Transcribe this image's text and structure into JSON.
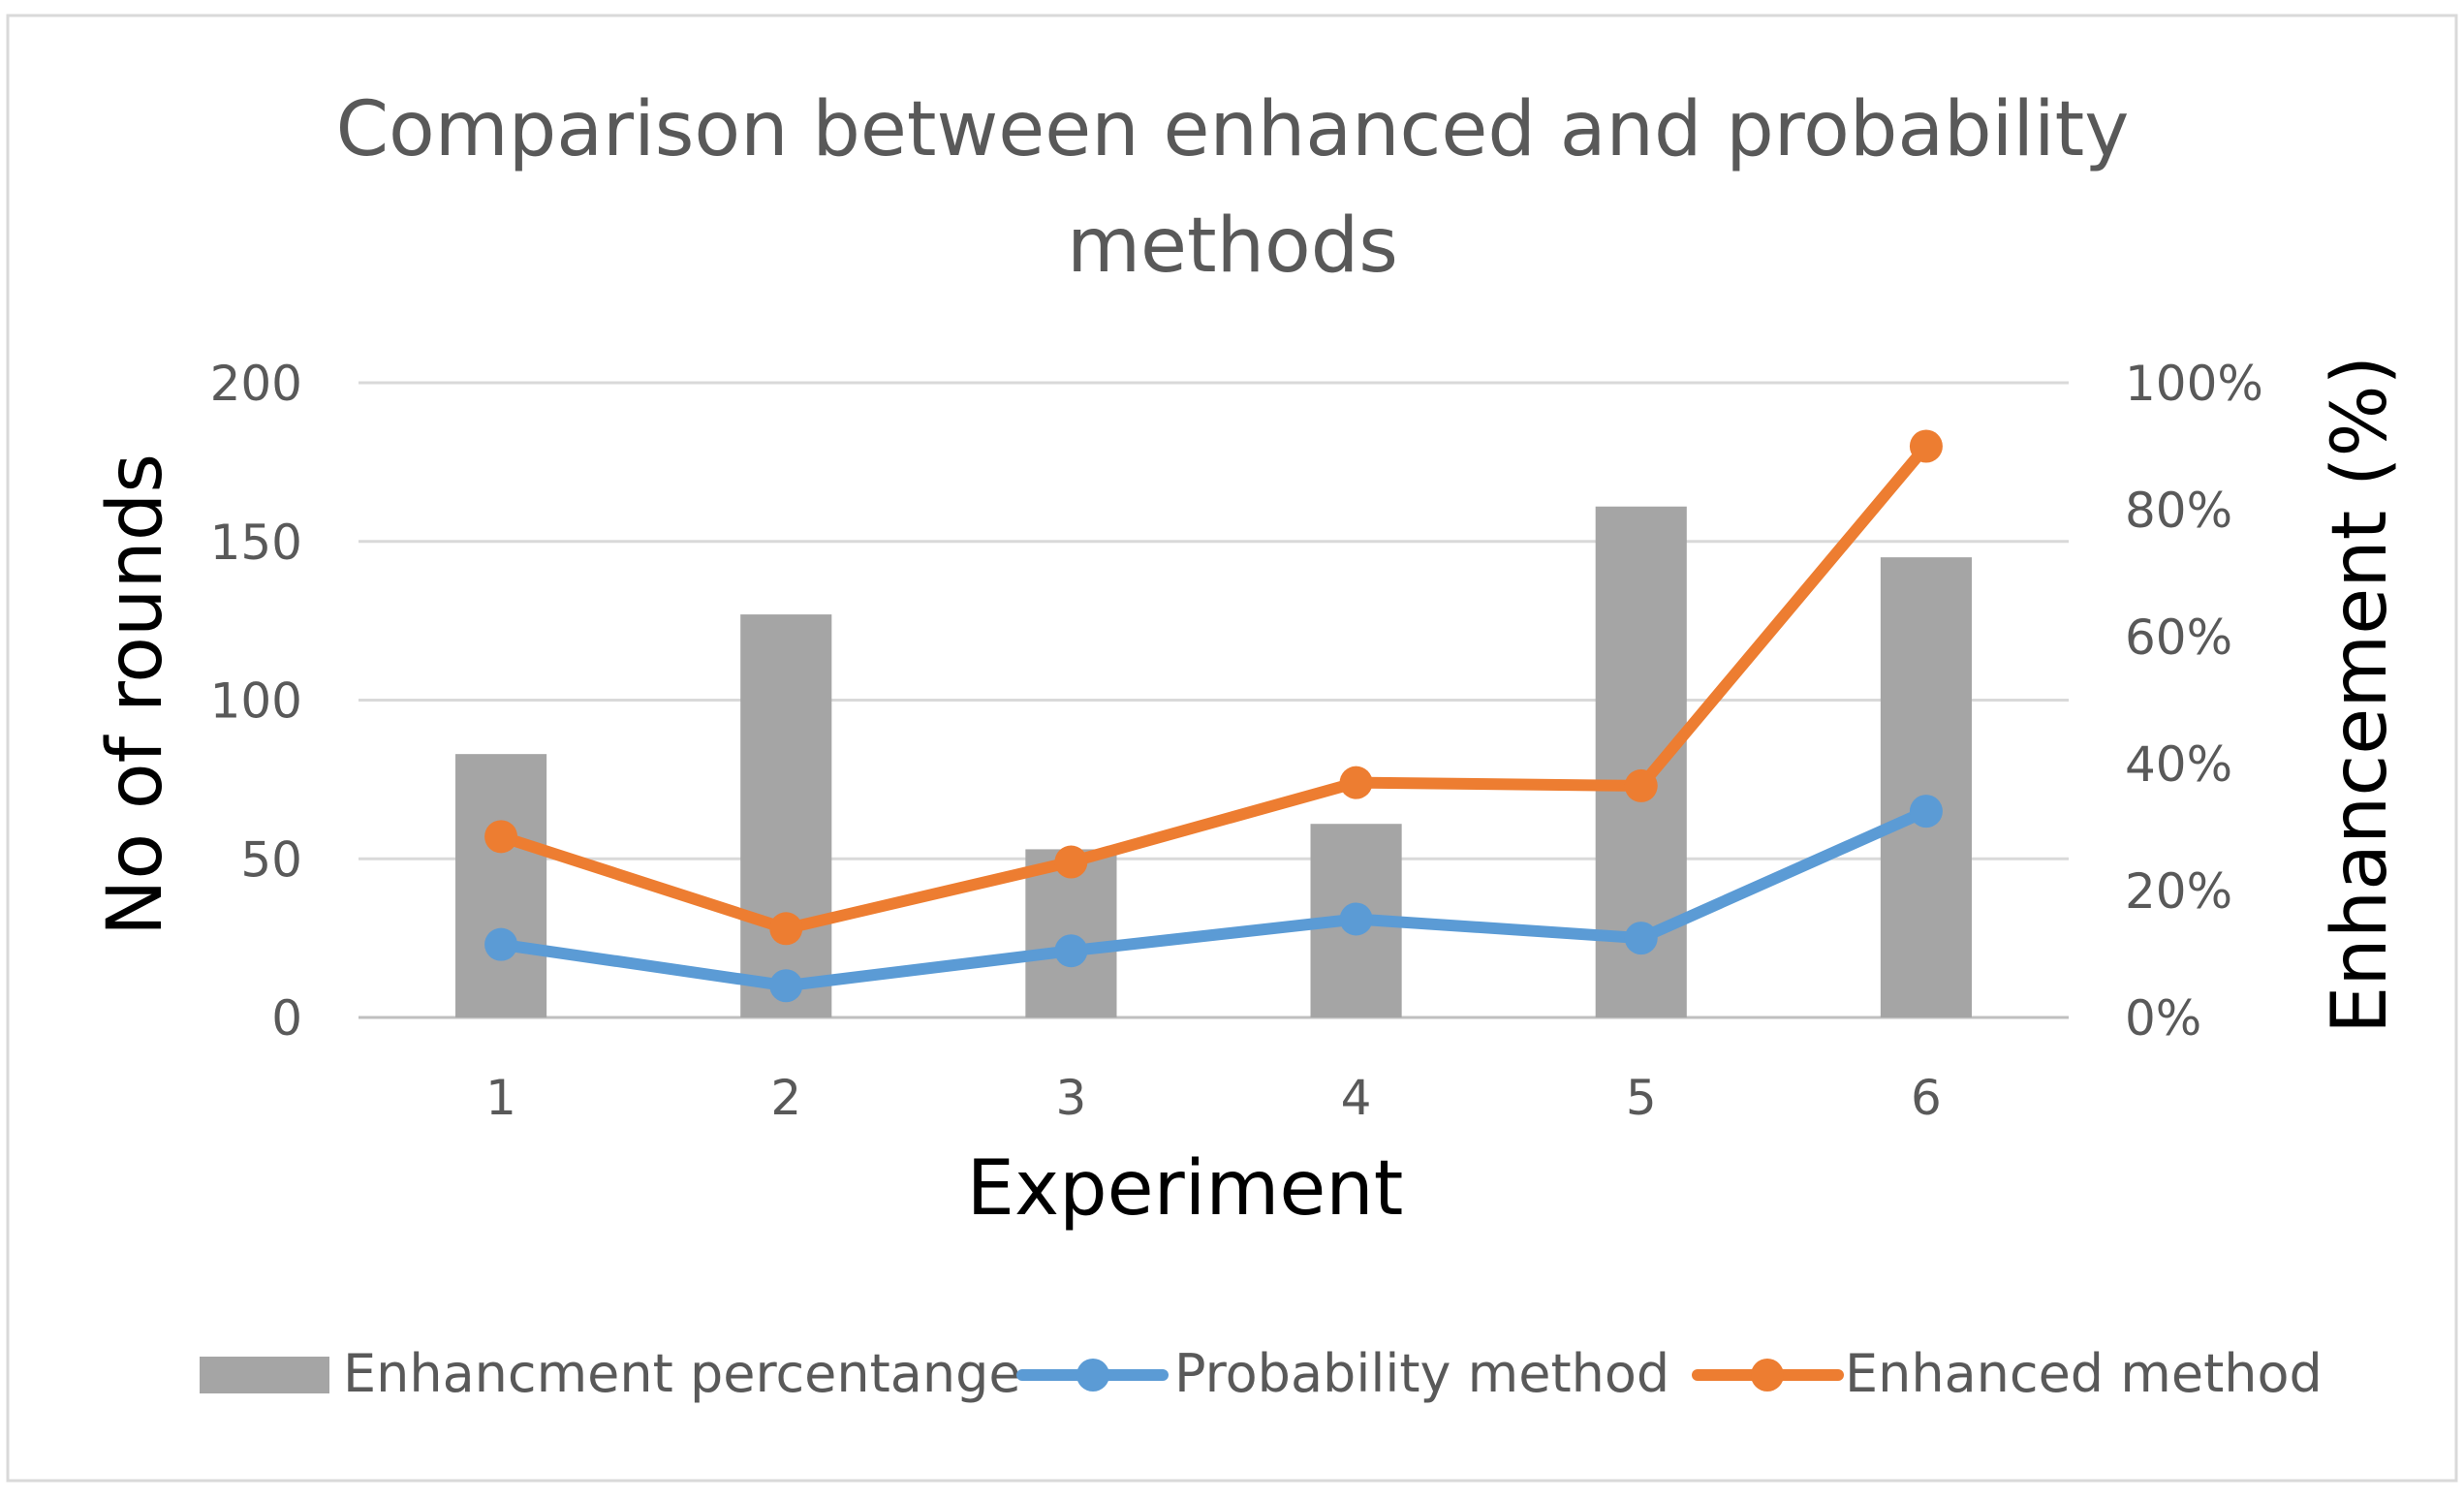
{
  "colors": {
    "bar": "#a5a5a5",
    "probability": "#5b9bd5",
    "enhanced": "#ed7d31",
    "grid": "#d9d9d9",
    "tick_text": "#595959",
    "title_text": "#595959",
    "axis_title_text": "#000000",
    "frame": "#d9d9d9"
  },
  "chart_data": {
    "type": "bar",
    "title": "Comparison between enhanced and probability methods",
    "title_lines": [
      "Comparison between enhanced and probability",
      "methods"
    ],
    "xlabel": "Experiment",
    "ylabel": "No of rounds",
    "y2label": "Enhancement (%)",
    "categories": [
      "1",
      "2",
      "3",
      "4",
      "5",
      "6"
    ],
    "ylim": [
      0,
      200
    ],
    "yticks": [
      0,
      50,
      100,
      150,
      200
    ],
    "ytick_labels": [
      "0",
      "50",
      "100",
      "150",
      "200"
    ],
    "y2lim": [
      0,
      100
    ],
    "y2ticks": [
      0,
      20,
      40,
      60,
      80,
      100
    ],
    "y2tick_labels": [
      "0%",
      "20%",
      "40%",
      "60%",
      "80%",
      "100%"
    ],
    "grid": true,
    "legend_position": "bottom",
    "series": [
      {
        "name": "Enhancment percentange",
        "kind": "bar",
        "axis": "right",
        "values": [
          41.5,
          63.5,
          26.5,
          30.5,
          80.5,
          72.5
        ]
      },
      {
        "name": "Probability method",
        "kind": "line",
        "axis": "left",
        "values": [
          23,
          10,
          21,
          31,
          25,
          65
        ]
      },
      {
        "name": "Enhanced method",
        "kind": "line",
        "axis": "left",
        "values": [
          57,
          28,
          49,
          74,
          73,
          180
        ]
      }
    ]
  }
}
